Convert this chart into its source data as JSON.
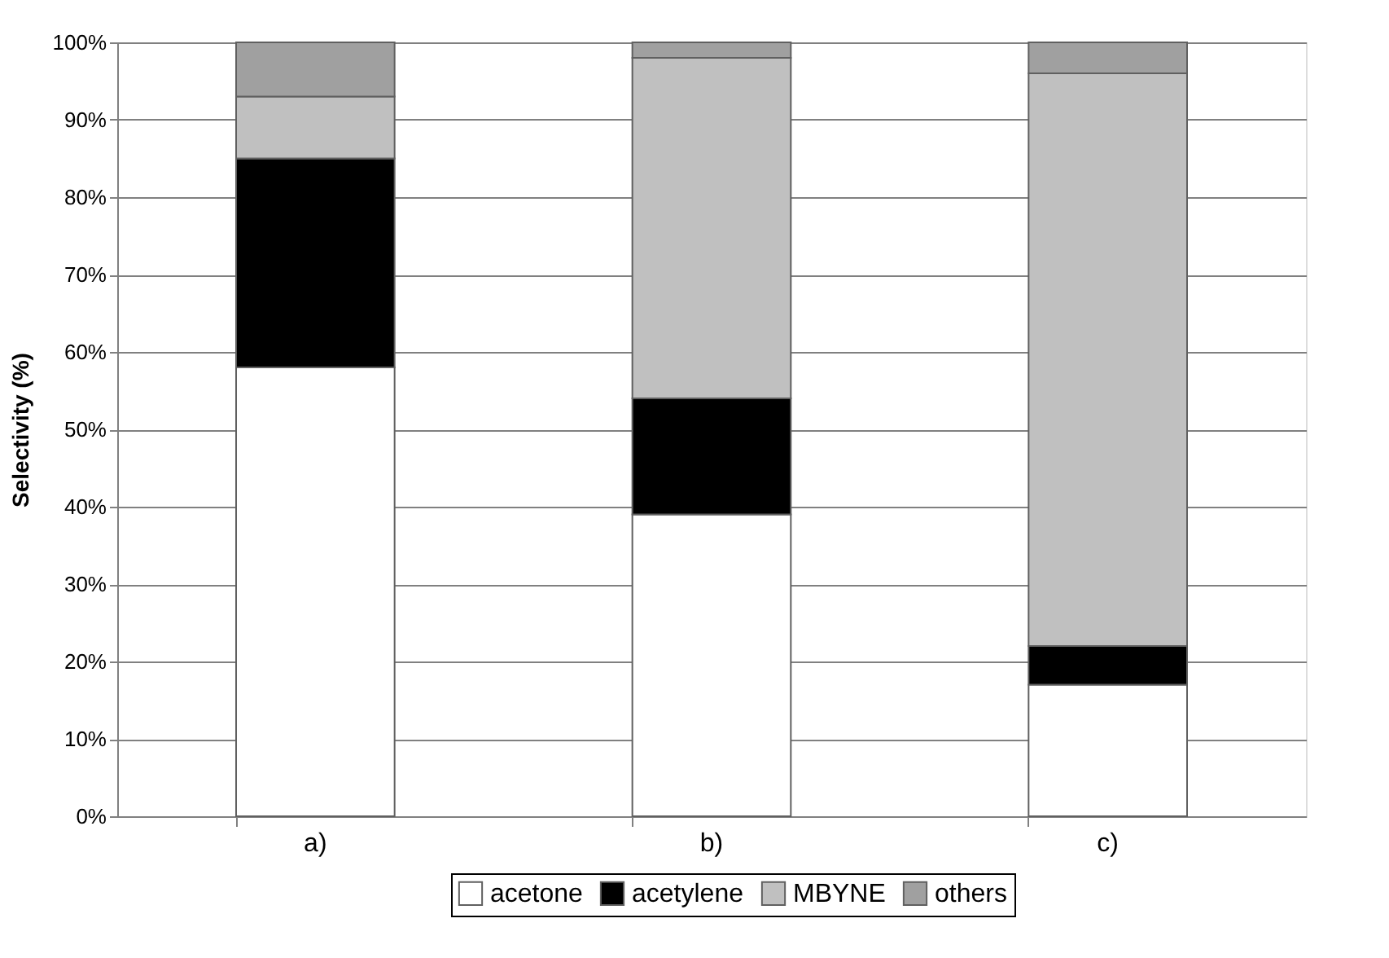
{
  "chart_data": {
    "type": "bar",
    "stacked": true,
    "ylabel": "Selectivity (%)",
    "categories": [
      "a)",
      "b)",
      "c)"
    ],
    "series": [
      {
        "name": "acetone",
        "color": "#ffffff",
        "values": [
          58,
          39,
          17
        ]
      },
      {
        "name": "acetylene",
        "color": "#000000",
        "values": [
          27,
          15,
          5
        ]
      },
      {
        "name": "MBYNE",
        "color": "#c0c0c0",
        "values": [
          8,
          44,
          74
        ]
      },
      {
        "name": "others",
        "color": "#a0a0a0",
        "values": [
          7,
          2,
          4
        ]
      }
    ],
    "ylim": [
      0,
      100
    ],
    "yticks": [
      {
        "value": 0,
        "label": "0%"
      },
      {
        "value": 10,
        "label": "10%"
      },
      {
        "value": 20,
        "label": "20%"
      },
      {
        "value": 30,
        "label": "30%"
      },
      {
        "value": 40,
        "label": "40%"
      },
      {
        "value": 50,
        "label": "50%"
      },
      {
        "value": 60,
        "label": "60%"
      },
      {
        "value": 70,
        "label": "70%"
      },
      {
        "value": 80,
        "label": "80%"
      },
      {
        "value": 90,
        "label": "90%"
      },
      {
        "value": 100,
        "label": "100%"
      }
    ],
    "grid": "y",
    "legend": "bottom"
  }
}
